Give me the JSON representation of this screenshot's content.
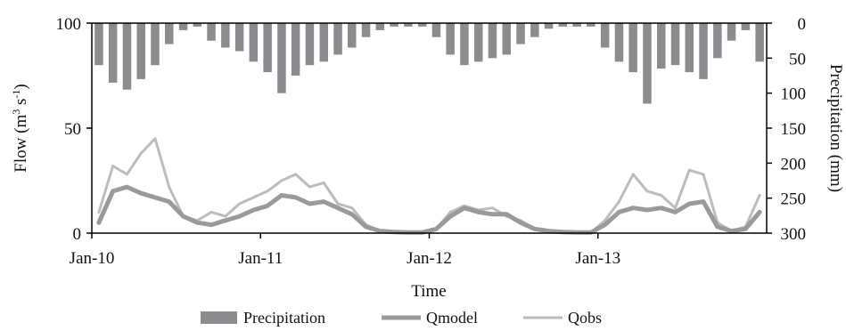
{
  "chart_data": {
    "type": "line",
    "xlabel": "Time",
    "ylabel": "Flow (m3 s-1)",
    "ylabel_parts": {
      "prefix": "Flow (m",
      "sup1": "3",
      "mid": " s",
      "sup2": "-1",
      "suffix": ")"
    },
    "y2label": "Precipitation (mm)",
    "x_range": [
      "2010-01",
      "2013-12"
    ],
    "x_ticks": [
      "Jan-10",
      "Jan-11",
      "Jan-12",
      "Jan-13"
    ],
    "ylim": [
      0,
      100
    ],
    "y_ticks": [
      "0",
      "50",
      "100"
    ],
    "y2lim": [
      0,
      300
    ],
    "y2_inverted": true,
    "y2_ticks": [
      "0",
      "50",
      "100",
      "150",
      "200",
      "250",
      "300"
    ],
    "legend_position": "bottom",
    "legend": [
      "Precipitation",
      "Qmodel",
      "Qobs"
    ],
    "colors": {
      "precipitation": "#8c8c8e",
      "qmodel": "#9a9a9c",
      "qobs": "#bcbcbe",
      "axis": "#000000"
    },
    "x_months": [
      "2010-01",
      "2010-02",
      "2010-03",
      "2010-04",
      "2010-05",
      "2010-06",
      "2010-07",
      "2010-08",
      "2010-09",
      "2010-10",
      "2010-11",
      "2010-12",
      "2011-01",
      "2011-02",
      "2011-03",
      "2011-04",
      "2011-05",
      "2011-06",
      "2011-07",
      "2011-08",
      "2011-09",
      "2011-10",
      "2011-11",
      "2011-12",
      "2012-01",
      "2012-02",
      "2012-03",
      "2012-04",
      "2012-05",
      "2012-06",
      "2012-07",
      "2012-08",
      "2012-09",
      "2012-10",
      "2012-11",
      "2012-12",
      "2013-01",
      "2013-02",
      "2013-03",
      "2013-04",
      "2013-05",
      "2013-06",
      "2013-07",
      "2013-08",
      "2013-09",
      "2013-10",
      "2013-11",
      "2013-12"
    ],
    "series": [
      {
        "name": "Precipitation",
        "unit": "mm",
        "axis": "right",
        "type": "bar",
        "values": [
          60,
          85,
          95,
          80,
          60,
          30,
          10,
          5,
          25,
          35,
          40,
          55,
          70,
          100,
          75,
          60,
          55,
          45,
          35,
          20,
          10,
          5,
          5,
          5,
          20,
          45,
          60,
          55,
          50,
          45,
          30,
          20,
          8,
          5,
          5,
          5,
          35,
          55,
          70,
          115,
          65,
          60,
          70,
          80,
          50,
          25,
          10,
          55
        ]
      },
      {
        "name": "Qmodel",
        "unit": "m3 s-1",
        "axis": "left",
        "type": "line",
        "values": [
          5,
          20,
          22,
          19,
          17,
          15,
          8,
          5,
          4,
          6,
          8,
          11,
          13,
          18,
          17,
          14,
          15,
          12,
          9,
          3,
          1,
          0.5,
          0.3,
          0.3,
          2,
          8,
          12,
          10,
          9,
          9,
          5,
          2,
          1,
          0.5,
          0.3,
          0.3,
          4,
          10,
          12,
          11,
          12,
          10,
          14,
          15,
          3,
          1,
          2,
          10
        ]
      },
      {
        "name": "Qobs",
        "unit": "m3 s-1",
        "axis": "left",
        "type": "line",
        "values": [
          10,
          32,
          28,
          38,
          45,
          22,
          8,
          6,
          10,
          8,
          14,
          17,
          20,
          25,
          28,
          22,
          24,
          14,
          12,
          4,
          1,
          0.5,
          0.3,
          0.3,
          2,
          10,
          13,
          11,
          12,
          8,
          6,
          2,
          1,
          0.5,
          0.3,
          0.3,
          6,
          15,
          28,
          20,
          18,
          12,
          30,
          28,
          5,
          1,
          3,
          18
        ]
      }
    ]
  }
}
